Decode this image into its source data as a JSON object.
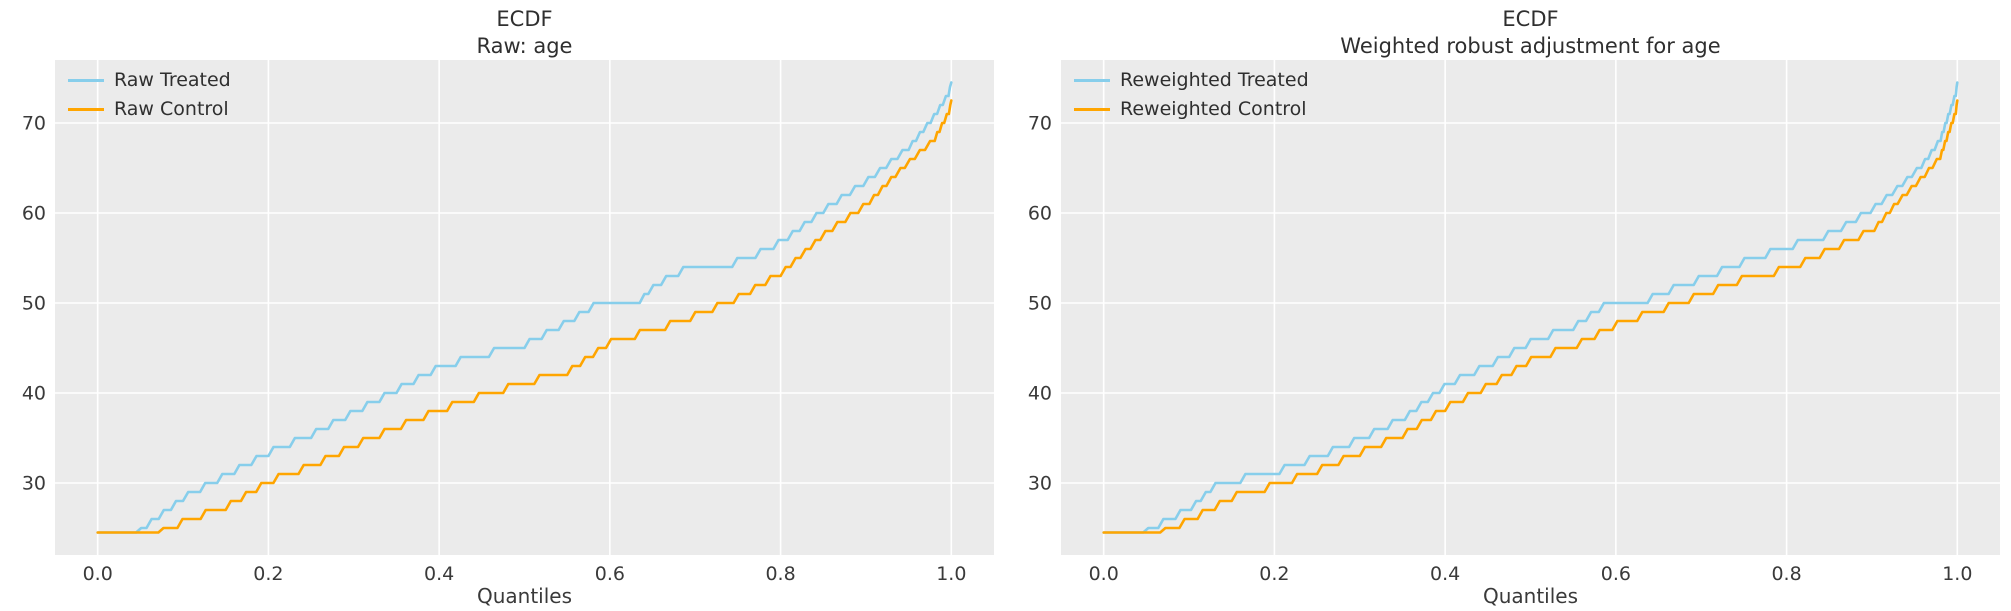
{
  "figure": {
    "background": "#ffffff"
  },
  "colors": {
    "plot_bg": "#ebebeb",
    "grid": "#ffffff",
    "tick_text": "#3a3a3a",
    "title_text": "#2f2f2f",
    "treated_blue": "#87ceeb",
    "control_orange": "#ffa500"
  },
  "chart_data": [
    {
      "type": "line",
      "style": "ecdf-quantile-step",
      "title": "ECDF",
      "subtitle": "Raw: age",
      "xlabel": "Quantiles",
      "ylabel": "",
      "x_ticks": [
        0.0,
        0.2,
        0.4,
        0.6,
        0.8,
        1.0
      ],
      "y_ticks": [
        30,
        40,
        50,
        60,
        70
      ],
      "xlim": [
        -0.05,
        1.05
      ],
      "ylim": [
        22,
        77
      ],
      "grid": true,
      "legend_position": "upper-left",
      "series": [
        {
          "name": "Raw Treated",
          "color": "#87ceeb",
          "points": [
            [
              0,
              24.5
            ],
            [
              0.04,
              24.5
            ],
            [
              0.05,
              25.5
            ],
            [
              0.1,
              29
            ],
            [
              0.13,
              30.5
            ],
            [
              0.15,
              31.5
            ],
            [
              0.2,
              34
            ],
            [
              0.25,
              36
            ],
            [
              0.3,
              38.5
            ],
            [
              0.35,
              41
            ],
            [
              0.4,
              43.5
            ],
            [
              0.45,
              44.8
            ],
            [
              0.5,
              46
            ],
            [
              0.55,
              48.5
            ],
            [
              0.575,
              50
            ],
            [
              0.625,
              50
            ],
            [
              0.65,
              52.5
            ],
            [
              0.68,
              54
            ],
            [
              0.72,
              54.3
            ],
            [
              0.76,
              55.5
            ],
            [
              0.8,
              57.4
            ],
            [
              0.85,
              61
            ],
            [
              0.9,
              64.2
            ],
            [
              0.95,
              68
            ],
            [
              0.98,
              71.5
            ],
            [
              1.0,
              74.5
            ]
          ]
        },
        {
          "name": "Raw Control",
          "color": "#ffa500",
          "points": [
            [
              0,
              24.5
            ],
            [
              0.06,
              24.5
            ],
            [
              0.1,
              26.3
            ],
            [
              0.15,
              28
            ],
            [
              0.2,
              30.8
            ],
            [
              0.25,
              32.5
            ],
            [
              0.3,
              34.8
            ],
            [
              0.35,
              36.8
            ],
            [
              0.4,
              38.7
            ],
            [
              0.45,
              40.3
            ],
            [
              0.5,
              41.7
            ],
            [
              0.55,
              43
            ],
            [
              0.6,
              46.3
            ],
            [
              0.65,
              47.5
            ],
            [
              0.7,
              49.2
            ],
            [
              0.75,
              51.2
            ],
            [
              0.8,
              54
            ],
            [
              0.85,
              58.3
            ],
            [
              0.9,
              61.6
            ],
            [
              0.93,
              64.6
            ],
            [
              0.95,
              66.4
            ],
            [
              0.98,
              68.9
            ],
            [
              1.0,
              72.5
            ]
          ]
        }
      ]
    },
    {
      "type": "line",
      "style": "ecdf-quantile-step",
      "title": "ECDF",
      "subtitle": "Weighted robust adjustment for age",
      "xlabel": "Quantiles",
      "ylabel": "",
      "x_ticks": [
        0.0,
        0.2,
        0.4,
        0.6,
        0.8,
        1.0
      ],
      "y_ticks": [
        30,
        40,
        50,
        60,
        70
      ],
      "xlim": [
        -0.05,
        1.05
      ],
      "ylim": [
        22,
        77
      ],
      "grid": true,
      "legend_position": "upper-left",
      "series": [
        {
          "name": "Reweighted Treated",
          "color": "#87ceeb",
          "points": [
            [
              0,
              24.5
            ],
            [
              0.04,
              24.5
            ],
            [
              0.05,
              25.3
            ],
            [
              0.1,
              27.8
            ],
            [
              0.125,
              30
            ],
            [
              0.15,
              30.8
            ],
            [
              0.2,
              31.8
            ],
            [
              0.25,
              33.5
            ],
            [
              0.3,
              35.5
            ],
            [
              0.35,
              37.8
            ],
            [
              0.4,
              41.5
            ],
            [
              0.45,
              43.7
            ],
            [
              0.5,
              46.3
            ],
            [
              0.55,
              48
            ],
            [
              0.58,
              50
            ],
            [
              0.62,
              50.2
            ],
            [
              0.65,
              51.6
            ],
            [
              0.7,
              53.3
            ],
            [
              0.75,
              55.2
            ],
            [
              0.8,
              56.8
            ],
            [
              0.85,
              58.2
            ],
            [
              0.9,
              61.1
            ],
            [
              0.93,
              63.5
            ],
            [
              0.96,
              66.2
            ],
            [
              0.98,
              68.9
            ],
            [
              1.0,
              74.5
            ]
          ]
        },
        {
          "name": "Reweighted Control",
          "color": "#ffa500",
          "points": [
            [
              0,
              24.5
            ],
            [
              0.055,
              24.5
            ],
            [
              0.1,
              26.5
            ],
            [
              0.15,
              29
            ],
            [
              0.2,
              30.3
            ],
            [
              0.25,
              32
            ],
            [
              0.3,
              34
            ],
            [
              0.35,
              36
            ],
            [
              0.4,
              39
            ],
            [
              0.45,
              41.4
            ],
            [
              0.5,
              44.3
            ],
            [
              0.55,
              45.8
            ],
            [
              0.6,
              48.2
            ],
            [
              0.65,
              49.8
            ],
            [
              0.7,
              51.5
            ],
            [
              0.75,
              53.3
            ],
            [
              0.8,
              54.3
            ],
            [
              0.85,
              56.5
            ],
            [
              0.9,
              58.7
            ],
            [
              0.93,
              62
            ],
            [
              0.96,
              64.8
            ],
            [
              0.98,
              67
            ],
            [
              1.0,
              72.5
            ]
          ]
        }
      ]
    }
  ]
}
